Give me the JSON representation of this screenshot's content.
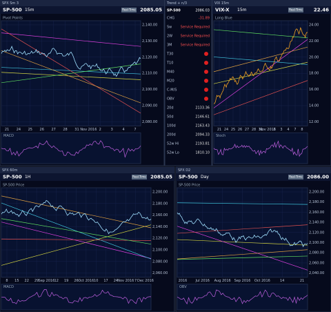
{
  "panels": [
    {
      "window": "SPX Sm 3",
      "symbol": "SP-500",
      "interval": "15m",
      "mode": "Real-Time",
      "price": "2085.05",
      "study": "Pivot Points",
      "lower": "MACD",
      "x_labels": [
        "21",
        "24",
        "25",
        "26",
        "27",
        "28",
        "31",
        "Nov 2016",
        "2",
        "3",
        "4",
        "7"
      ],
      "y_labels": [
        "2,140.00",
        "2,130.00",
        "2,120.00",
        "2,110.00",
        "2,100.00",
        "2,090.00",
        "2,080.00"
      ]
    },
    {
      "window": "VIX 15m",
      "symbol": "VIX-X",
      "interval": "15m",
      "mode": "Real-Time",
      "price": "22.46",
      "study": "Long Blue",
      "lower": "Stoch",
      "x_labels": [
        "21",
        "24",
        "25",
        "26",
        "27",
        "28",
        "31",
        "Nov 2016",
        "2",
        "3",
        "4",
        "7",
        "8"
      ],
      "y_labels": [
        "24.00",
        "22.00",
        "20.00",
        "18.00",
        "16.00",
        "14.00",
        "12.00"
      ]
    },
    {
      "window": "SPX 60m",
      "symbol": "SP-500",
      "interval": "1H",
      "mode": "Real-Time",
      "price": "2085.05",
      "study": "SP-500 Price",
      "lower": "MACD",
      "x_labels": [
        "8",
        "15",
        "22",
        "29",
        "Sep 2016",
        "12",
        "19",
        "26",
        "Oct 2016",
        "10",
        "17",
        "24",
        "Nov 2016",
        "7",
        "Dec 2016"
      ],
      "y_labels": [
        "2,200.00",
        "2,180.00",
        "2,160.00",
        "2,140.00",
        "2,120.00",
        "2,100.00",
        "2,080.00",
        "2,060.00"
      ]
    },
    {
      "window": "SPX D2",
      "symbol": "SP-500",
      "interval": "Day",
      "mode": "Real-Time",
      "price": "2086.00",
      "study": "SP-500 Price",
      "lower": "OBV",
      "x_labels": [
        "2016",
        "Jul 2016",
        "Aug 2016",
        "Sep 2016",
        "Oct 2016",
        "14",
        "21"
      ],
      "y_labels": [
        "2,200.00",
        "2,180.00",
        "2,160.00",
        "2,140.00",
        "2,120.00",
        "2,100.00",
        "2,080.00",
        "2,060.00",
        "2,040.00"
      ]
    }
  ],
  "watchlist": {
    "window": "Trend + n/3",
    "symbol": "SP-500",
    "price": "2086.03",
    "rows": [
      [
        "CHG",
        "-31.89"
      ],
      [
        "Sw",
        "Service Required"
      ],
      [
        "2W",
        "Service Required"
      ],
      [
        "3M",
        "Service Required"
      ],
      [
        "T30",
        ""
      ],
      [
        "T10",
        ""
      ],
      [
        "M40",
        ""
      ],
      [
        "M20",
        ""
      ],
      [
        "C-M/S",
        ""
      ],
      [
        "OBV",
        ""
      ],
      [
        "20d",
        "2133.36"
      ],
      [
        "50d",
        "2146.61"
      ],
      [
        "100d",
        "2163.43"
      ],
      [
        "200d",
        "2094.33"
      ],
      [
        "52w Hi",
        "2193.81"
      ],
      [
        "52w Lo",
        "1810.10"
      ]
    ]
  }
}
